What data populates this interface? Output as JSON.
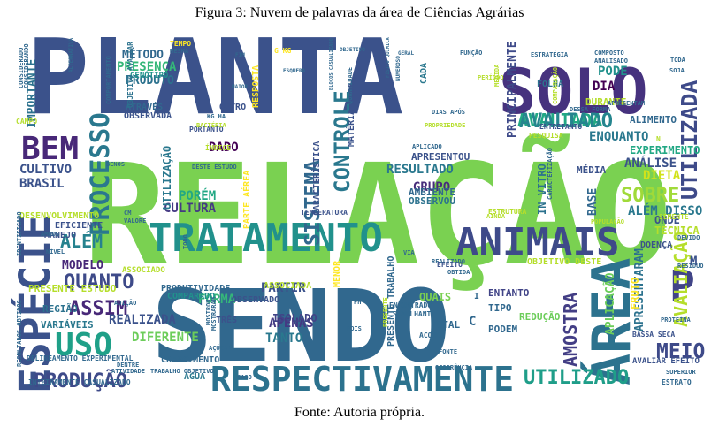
{
  "caption_top": "Figura 3: Nuvem de palavras da área de Ciências Agrárias",
  "caption_bottom": "Fonte: Autoria própria.",
  "words": [
    {
      "text": "PLANTA",
      "color": "#3b528b"
    },
    {
      "text": "RELAÇÃO",
      "color": "#7ad151"
    },
    {
      "text": "SENDO",
      "color": "#31688e"
    },
    {
      "text": "SOLO",
      "color": "#46327e"
    },
    {
      "text": "TRATAMENTO",
      "color": "#21918c"
    },
    {
      "text": "RESPECTIVAMENTE",
      "color": "#2c728e"
    },
    {
      "text": "ANIMAIS",
      "color": "#3e4a89"
    },
    {
      "text": "ESPÉCIE",
      "color": "#3b528b"
    },
    {
      "text": "BEM",
      "color": "#482878"
    },
    {
      "text": "USO",
      "color": "#1fa088"
    },
    {
      "text": "ÁREA",
      "color": "#2c728e"
    },
    {
      "text": "P",
      "color": "#414487"
    },
    {
      "text": "AVALIADA",
      "color": "#22a884"
    },
    {
      "text": "CONTROLE",
      "color": "#2a788e"
    },
    {
      "text": "UTILIZADA",
      "color": "#3e4a89"
    },
    {
      "text": "AVALIADO",
      "color": "#25858e"
    },
    {
      "text": "PROCESSO",
      "color": "#2a788e"
    },
    {
      "text": "SISTEMA",
      "color": "#31688e"
    },
    {
      "text": "AMOSTRA",
      "color": "#433e85"
    },
    {
      "text": "AVALIAÇÃO",
      "color": "#b5de2b"
    },
    {
      "text": "QUANTO",
      "color": "#3e4a89"
    },
    {
      "text": "ASSIM",
      "color": "#482878"
    },
    {
      "text": "ALÉM",
      "color": "#26828e"
    },
    {
      "text": "PRODUÇÃO",
      "color": "#3e4a89"
    },
    {
      "text": "UTILIZADO",
      "color": "#1f9e89"
    },
    {
      "text": "MEIO",
      "color": "#3e4a89"
    },
    {
      "text": "SOBRE",
      "color": "#a0da39"
    },
    {
      "text": "PODE",
      "color": "#21918c"
    },
    {
      "text": "MÉTODO",
      "color": "#31688e"
    },
    {
      "text": "PRESENÇA",
      "color": "#35b779"
    },
    {
      "text": "PRODUTO",
      "color": "#2c728e"
    },
    {
      "text": "DIA",
      "color": "#440154"
    },
    {
      "text": "ENQUANTO",
      "color": "#2a788e"
    },
    {
      "text": "ANÁLISE",
      "color": "#3b528b"
    },
    {
      "text": "RESULTADO",
      "color": "#2a788e"
    },
    {
      "text": "GRUPO",
      "color": "#472d7b"
    },
    {
      "text": "CULTURA",
      "color": "#443983"
    },
    {
      "text": "BRASIL",
      "color": "#3b528b"
    },
    {
      "text": "CULTIVO",
      "color": "#3b528b"
    },
    {
      "text": "DIFERENTE",
      "color": "#6ccd5a"
    },
    {
      "text": "REALIZADA",
      "color": "#3b528b"
    },
    {
      "text": "PARTIR",
      "color": "#3b528b"
    },
    {
      "text": "APENAS",
      "color": "#443983"
    },
    {
      "text": "TANTO",
      "color": "#2a788e"
    },
    {
      "text": "FORMA",
      "color": "#35b779"
    },
    {
      "text": "PORÉM",
      "color": "#22a884"
    },
    {
      "text": "DADO",
      "color": "#440154"
    },
    {
      "text": "DIETA",
      "color": "#d2e21b"
    },
    {
      "text": "BASE",
      "color": "#31688e"
    },
    {
      "text": "MODELO",
      "color": "#482878"
    },
    {
      "text": "ALÉM DISSO",
      "color": "#2a788e"
    },
    {
      "text": "ISOLADO",
      "color": "#414487"
    },
    {
      "text": "CARACTERÍSTICA",
      "color": "#3b528b"
    },
    {
      "text": "EXPERIMENTO",
      "color": "#22a884"
    },
    {
      "text": "APRESENTOU",
      "color": "#3b528b"
    },
    {
      "text": "OBSERVOU",
      "color": "#2c728e"
    },
    {
      "text": "AMBIENTE",
      "color": "#31688e"
    },
    {
      "text": "PRINCIPALMENTE",
      "color": "#3e4a89"
    },
    {
      "text": "UTILIZAÇÃO",
      "color": "#2a788e"
    },
    {
      "text": "APLICAÇÃO",
      "color": "#6ccd5a"
    },
    {
      "text": "APRESENTARAM",
      "color": "#2c728e"
    },
    {
      "text": "PRODUTIVIDADE",
      "color": "#31688e"
    },
    {
      "text": "OBSERVADO",
      "color": "#3b528b"
    },
    {
      "text": "COMPARADO",
      "color": "#21918c"
    },
    {
      "text": "OBSERVADA",
      "color": "#3b528b"
    },
    {
      "text": "GENÓTIPO",
      "color": "#21918c"
    },
    {
      "text": "ATRAVÉS",
      "color": "#31688e"
    },
    {
      "text": "OBJETIVO AVALIAR",
      "color": "#2c728e"
    },
    {
      "text": "IMPORTANTE",
      "color": "#2c728e"
    },
    {
      "text": "VARIÁVEIS",
      "color": "#2a788e"
    },
    {
      "text": "REGIÃO",
      "color": "#2c728e"
    },
    {
      "text": "ÁGUA",
      "color": "#2a788e"
    },
    {
      "text": "TOTAL",
      "color": "#31688e"
    },
    {
      "text": "TIPO",
      "color": "#31688e"
    },
    {
      "text": "PODEM",
      "color": "#31688e"
    },
    {
      "text": "REDUÇÃO",
      "color": "#6ccd5a"
    },
    {
      "text": "QUAIS",
      "color": "#7ad151"
    },
    {
      "text": "ENTANTO",
      "color": "#414487"
    },
    {
      "text": "MÉDIA",
      "color": "#3b528b"
    },
    {
      "text": "IN VITRO",
      "color": "#2c728e"
    },
    {
      "text": "MATÉRIA SECA",
      "color": "#3b528b"
    },
    {
      "text": "PARTE AÉREA",
      "color": "#fde725"
    },
    {
      "text": "PRESENTE TRABALHO",
      "color": "#31688e"
    },
    {
      "text": "PRESENTE ESTUDO",
      "color": "#b5de2b"
    },
    {
      "text": "DELINEAMENTO EXPERIMENTAL",
      "color": "#31688e"
    },
    {
      "text": "INTEIRAMENTE CASUALIZADO",
      "color": "#31688e"
    },
    {
      "text": "MANEJO",
      "color": "#3b528b"
    },
    {
      "text": "EFICIENTE",
      "color": "#3b528b"
    },
    {
      "text": "DESENVOLVIMENTO",
      "color": "#b5de2b"
    },
    {
      "text": "OBJETIVO DESTE",
      "color": "#b5de2b"
    },
    {
      "text": "FOLHA",
      "color": "#2c728e"
    },
    {
      "text": "CADA",
      "color": "#2a788e"
    },
    {
      "text": "RESPOSTA",
      "color": "#fde725"
    },
    {
      "text": "OUTRO",
      "color": "#3b528b"
    },
    {
      "text": "TRÊS",
      "color": "#3b528b"
    },
    {
      "text": "CRESCIMENTO",
      "color": "#31688e"
    },
    {
      "text": "ASSOCIADA",
      "color": "#b5de2b"
    },
    {
      "text": "MENOR",
      "color": "#fde725"
    },
    {
      "text": "FRUTO",
      "color": "#fde725"
    },
    {
      "text": "DOENÇA",
      "color": "#3b528b"
    },
    {
      "text": "ALIMENTO",
      "color": "#31688e"
    },
    {
      "text": "ONDE",
      "color": "#3b528b"
    },
    {
      "text": "TÉCNICA",
      "color": "#b5de2b"
    },
    {
      "text": "ESTRUTURA",
      "color": "#b5de2b"
    },
    {
      "text": "TEMPERATURA",
      "color": "#3b528b"
    },
    {
      "text": "DURANTE",
      "color": "#b5de2b"
    },
    {
      "text": "PORTANTO",
      "color": "#3b528b"
    },
    {
      "text": "TEMPO",
      "color": "#fde725"
    },
    {
      "text": "CAMPO",
      "color": "#b5de2b"
    },
    {
      "text": "ÍNDICE",
      "color": "#b5de2b"
    },
    {
      "text": "ASSOCIADO",
      "color": "#b5de2b"
    },
    {
      "text": "BASSA SECA",
      "color": "#3b528b"
    },
    {
      "text": "AVALIAR EFEITO",
      "color": "#3b528b"
    },
    {
      "text": "ESTRATO",
      "color": "#31688e"
    },
    {
      "text": "ENTRETANTO",
      "color": "#3b528b"
    },
    {
      "text": "EFEITO",
      "color": "#3b528b"
    },
    {
      "text": "ACORDO",
      "color": "#31688e"
    },
    {
      "text": "SEMELHANTE",
      "color": "#31688e"
    },
    {
      "text": "ENCONTRADO",
      "color": "#31688e"
    },
    {
      "text": "ESTRATÉGIA",
      "color": "#31688e"
    },
    {
      "text": "COMPOSTO",
      "color": "#31688e"
    },
    {
      "text": "ANALISADO",
      "color": "#31688e"
    },
    {
      "text": "APRESENTAM",
      "color": "#31688e"
    },
    {
      "text": "FUNÇÃO",
      "color": "#31688e"
    },
    {
      "text": "DIAS APÓS",
      "color": "#31688e"
    },
    {
      "text": "CONSIDERADO",
      "color": "#31688e"
    },
    {
      "text": "PESQUISA",
      "color": "#b5de2b"
    },
    {
      "text": "SEMENTE",
      "color": "#b5de2b"
    },
    {
      "text": "POPULAÇÃO",
      "color": "#b5de2b"
    },
    {
      "text": "SUPERIOR",
      "color": "#31688e"
    },
    {
      "text": "PROTEÍNA",
      "color": "#31688e"
    },
    {
      "text": "RESÍDUO",
      "color": "#31688e"
    },
    {
      "text": "DEVIDO",
      "color": "#31688e"
    },
    {
      "text": "OBTIDA",
      "color": "#31688e"
    },
    {
      "text": "REALIZADO",
      "color": "#31688e"
    },
    {
      "text": "ATIVIDADE",
      "color": "#31688e"
    },
    {
      "text": "ADIÇÃO",
      "color": "#31688e"
    },
    {
      "text": "AÇÚCAR",
      "color": "#31688e"
    },
    {
      "text": "DENTRE",
      "color": "#31688e"
    },
    {
      "text": "MOSTRARAM",
      "color": "#31688e"
    },
    {
      "text": "MOSTROU",
      "color": "#31688e"
    },
    {
      "text": "RESULTADOS OBTIDOS",
      "color": "#31688e"
    },
    {
      "text": "IDENTIFICADO",
      "color": "#31688e"
    },
    {
      "text": "NÍVEL",
      "color": "#31688e"
    },
    {
      "text": "AMBOS",
      "color": "#31688e"
    },
    {
      "text": "VALORE",
      "color": "#31688e"
    },
    {
      "text": "BACTÉRIA",
      "color": "#b5de2b"
    },
    {
      "text": "DESTE ESTUDO",
      "color": "#31688e"
    },
    {
      "text": "BENOS",
      "color": "#31688e"
    },
    {
      "text": "ALTERNATIVA",
      "color": "#31688e"
    },
    {
      "text": "COMPORTAMENTO",
      "color": "#31688e"
    },
    {
      "text": "PROPRIEDADE",
      "color": "#b5de2b"
    },
    {
      "text": "CARACTERIZAÇÃO",
      "color": "#31688e"
    },
    {
      "text": "TRABALHO OBJETIVO",
      "color": "#31688e"
    },
    {
      "text": "BLOCOS CASUALIZADO",
      "color": "#31688e"
    },
    {
      "text": "FÍSICO QUÍMICA",
      "color": "#31688e"
    },
    {
      "text": "OCORRÊNCIA",
      "color": "#31688e"
    },
    {
      "text": "COMPARAÇÃO",
      "color": "#b5de2b"
    },
    {
      "text": "DESSA FORMA",
      "color": "#31688e"
    },
    {
      "text": "TODA",
      "color": "#31688e"
    },
    {
      "text": "SOJA",
      "color": "#31688e"
    },
    {
      "text": "KG HA",
      "color": "#31688e"
    },
    {
      "text": "QUANTIDADE",
      "color": "#31688e"
    },
    {
      "text": "APLICADO",
      "color": "#31688e"
    },
    {
      "text": "FONTE",
      "color": "#31688e"
    },
    {
      "text": "VIA",
      "color": "#31688e"
    },
    {
      "text": "AINDA",
      "color": "#b5de2b"
    },
    {
      "text": "CASO",
      "color": "#31688e"
    },
    {
      "text": "POIS",
      "color": "#31688e"
    },
    {
      "text": "ESQUERA",
      "color": "#31688e"
    },
    {
      "text": "NUMEROSO",
      "color": "#31688e"
    },
    {
      "text": "MAIOR",
      "color": "#31688e"
    },
    {
      "text": "FIM",
      "color": "#31688e"
    },
    {
      "text": "MEDIDA",
      "color": "#b5de2b"
    },
    {
      "text": "PERÍODO",
      "color": "#b5de2b"
    },
    {
      "text": "TODO",
      "color": "#31688e"
    },
    {
      "text": "PRESENTE",
      "color": "#b5de2b"
    },
    {
      "text": "G KG",
      "color": "#fde725"
    },
    {
      "text": "M",
      "color": "#3b528b"
    },
    {
      "text": "N",
      "color": "#b5de2b"
    },
    {
      "text": "C",
      "color": "#31688e"
    },
    {
      "text": "I",
      "color": "#31688e"
    },
    {
      "text": "CM",
      "color": "#31688e"
    },
    {
      "text": "PH",
      "color": "#31688e"
    },
    {
      "text": "CONSIDERANDO",
      "color": "#31688e"
    },
    {
      "text": "MESMA",
      "color": "#31688e"
    },
    {
      "text": "OBJETIVO",
      "color": "#31688e"
    },
    {
      "text": "GERAL",
      "color": "#31688e"
    }
  ]
}
